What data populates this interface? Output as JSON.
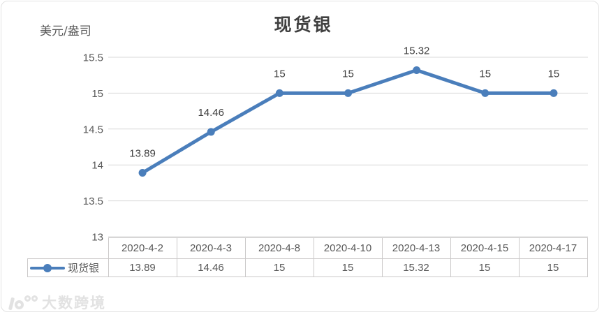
{
  "chart_data": {
    "type": "line",
    "title": "现货银",
    "y_axis_title": "美元/盎司",
    "categories": [
      "2020-4-2",
      "2020-4-3",
      "2020-4-8",
      "2020-4-10",
      "2020-4-13",
      "2020-4-15",
      "2020-4-17"
    ],
    "series": [
      {
        "name": "现货银",
        "values": [
          13.89,
          14.46,
          15,
          15,
          15.32,
          15,
          15
        ]
      }
    ],
    "data_labels": [
      "13.89",
      "14.46",
      "15",
      "15",
      "15.32",
      "15",
      "15"
    ],
    "yticks": [
      "15.5",
      "15",
      "14.5",
      "14",
      "13.5",
      "13"
    ],
    "ylim": [
      13,
      15.5
    ],
    "grid": true,
    "legend_position": "table-left",
    "line_color": "#4A7EBB",
    "grid_color": "#D9D9D9",
    "label_color": "#404040",
    "tick_color": "#595959"
  },
  "table": {
    "legend_label": "现货银"
  },
  "watermark": {
    "text": "大数跨境"
  }
}
